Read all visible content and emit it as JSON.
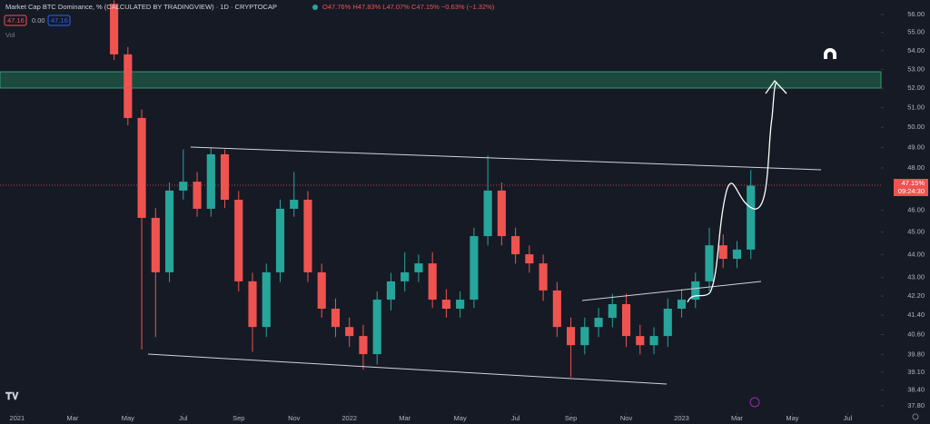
{
  "header": {
    "title": "Market Cap BTC Dominance, % (CALCULATED BY TRADINGVIEW) · 1D · CRYPTOCAP",
    "ohlc": "O47.76% H47.83% L47.07% C47.15% −0.63% (−1.32%)",
    "bid": "47.16",
    "spread": "0.00",
    "ask": "47.16",
    "volume": "Vol",
    "last_price": "47.15%",
    "countdown": "09:24:30"
  },
  "chart_data": {
    "type": "candlestick",
    "log": true,
    "up_color": "#26a69a",
    "down_color": "#ef5350",
    "x": [
      3.5,
      4,
      4.5,
      5,
      5.5,
      6,
      6.5,
      7,
      7.5,
      8,
      8.5,
      9,
      9.5,
      10,
      10.5,
      11,
      11.5,
      12,
      12.5,
      13,
      13.5,
      14,
      14.5,
      15,
      15.5,
      16,
      16.5,
      17,
      17.5,
      18,
      18.5,
      19,
      19.5,
      20,
      20.5,
      21,
      21.5,
      22,
      22.5,
      23,
      23.5,
      24,
      24.5,
      25,
      25.5,
      26,
      26.5
    ],
    "open": [
      56.6,
      53.8,
      50.47,
      45.65,
      43.22,
      46.92,
      47.34,
      46.07,
      48.66,
      46.49,
      42.83,
      40.91,
      43.22,
      46.07,
      46.49,
      43.22,
      41.67,
      40.91,
      40.54,
      39.81,
      42.05,
      42.83,
      43.22,
      43.61,
      42.05,
      41.67,
      42.05,
      44.82,
      46.92,
      44.82,
      44.01,
      43.61,
      42.44,
      40.91,
      40.17,
      40.91,
      41.29,
      41.86,
      40.54,
      40.17,
      40.54,
      41.67,
      42.05,
      42.83,
      44.41,
      43.81,
      44.22
    ],
    "high": [
      56.8,
      54.2,
      50.9,
      46.1,
      47.3,
      48.9,
      47.8,
      49,
      48.9,
      46.9,
      43.2,
      43.6,
      46.5,
      47.8,
      46.9,
      43.6,
      42.1,
      41.3,
      41,
      42.4,
      43.2,
      44.1,
      44,
      44.1,
      42.5,
      42.4,
      45.2,
      48.6,
      47.3,
      45.2,
      44.4,
      44,
      42.8,
      41.3,
      41.3,
      41.7,
      42.3,
      42.3,
      41,
      40.9,
      42.1,
      42.5,
      43.2,
      45.2,
      44.9,
      44.6,
      47.9
    ],
    "low": [
      53.5,
      50.1,
      40,
      40.5,
      42.8,
      46.5,
      45.7,
      45.7,
      46.1,
      42.4,
      39.9,
      40.5,
      42.8,
      45.7,
      42.8,
      41.3,
      40.5,
      40.1,
      39.2,
      39.4,
      41.6,
      42.4,
      42.8,
      41.7,
      41.3,
      41.3,
      41.7,
      44.4,
      44.4,
      43.6,
      43.2,
      42,
      40.5,
      38.9,
      39.8,
      40.5,
      40.9,
      40.1,
      39.8,
      39.8,
      40.1,
      41.3,
      41.7,
      42.4,
      43.4,
      43.4,
      43.8
    ],
    "close": [
      53.8,
      50.47,
      45.65,
      43.22,
      46.92,
      47.34,
      46.07,
      48.66,
      46.49,
      42.83,
      40.91,
      43.22,
      46.07,
      46.49,
      43.22,
      41.67,
      40.91,
      40.54,
      39.81,
      42.05,
      42.83,
      43.22,
      43.61,
      42.05,
      41.67,
      42.05,
      44.82,
      46.92,
      44.82,
      44.01,
      43.61,
      42.44,
      40.91,
      40.17,
      40.91,
      41.29,
      41.86,
      40.54,
      40.17,
      40.54,
      41.67,
      42.05,
      42.83,
      44.41,
      43.81,
      44.22,
      47.15
    ],
    "xlim": [
      -0.62,
      31.2
    ],
    "xticks": [
      {
        "value": 0,
        "label": "2021"
      },
      {
        "value": 2,
        "label": "Mar"
      },
      {
        "value": 4,
        "label": "May"
      },
      {
        "value": 6,
        "label": "Jul"
      },
      {
        "value": 8,
        "label": "Sep"
      },
      {
        "value": 10,
        "label": "Nov"
      },
      {
        "value": 12,
        "label": "2022"
      },
      {
        "value": 14,
        "label": "Mar"
      },
      {
        "value": 16,
        "label": "May"
      },
      {
        "value": 18,
        "label": "Jul"
      },
      {
        "value": 20,
        "label": "Sep"
      },
      {
        "value": 22,
        "label": "Nov"
      },
      {
        "value": 24,
        "label": "2023"
      },
      {
        "value": 26,
        "label": "Mar"
      },
      {
        "value": 28,
        "label": "May"
      },
      {
        "value": 30,
        "label": "Jul"
      }
    ],
    "ylim": [
      37.52,
      56.82
    ],
    "yticks": [
      {
        "value": 56,
        "label": "56.00"
      },
      {
        "value": 55,
        "label": "55.00"
      },
      {
        "value": 54,
        "label": "54.00"
      },
      {
        "value": 53,
        "label": "53.00"
      },
      {
        "value": 52,
        "label": "52.00"
      },
      {
        "value": 51,
        "label": "51.00"
      },
      {
        "value": 50,
        "label": "50.00"
      },
      {
        "value": 49,
        "label": "49.00"
      },
      {
        "value": 48,
        "label": "48.00"
      },
      {
        "value": 46,
        "label": "46.00"
      },
      {
        "value": 45,
        "label": "45.00"
      },
      {
        "value": 44,
        "label": "44.00"
      },
      {
        "value": 43,
        "label": "43.00"
      },
      {
        "value": 42.2,
        "label": "42.20"
      },
      {
        "value": 41.4,
        "label": "41.40"
      },
      {
        "value": 40.6,
        "label": "40.60"
      },
      {
        "value": 39.8,
        "label": "39.80"
      },
      {
        "value": 39.1,
        "label": "39.10"
      },
      {
        "value": 38.4,
        "label": "38.40"
      },
      {
        "value": 37.8,
        "label": "37.80"
      }
    ]
  }
}
